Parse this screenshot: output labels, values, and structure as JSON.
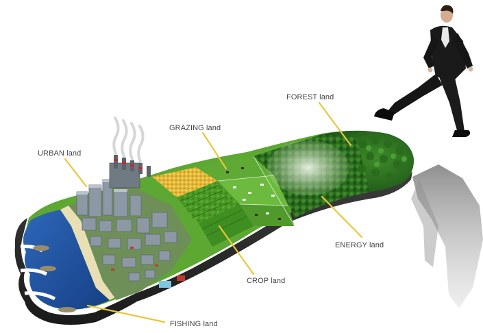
{
  "labels": {
    "urban": "URBAN land",
    "grazing": "GRAZING land",
    "forest": "FOREST land",
    "energy": "ENERGY land",
    "crop": "CROP land",
    "fishing": "FISHING land"
  },
  "colors": {
    "leader": "#e6c93a",
    "water": "#1e4f9c",
    "grass": "#4f9a2a",
    "forest": "#2e6b1f",
    "wheat": "#e0b437",
    "suit": "#161616"
  }
}
